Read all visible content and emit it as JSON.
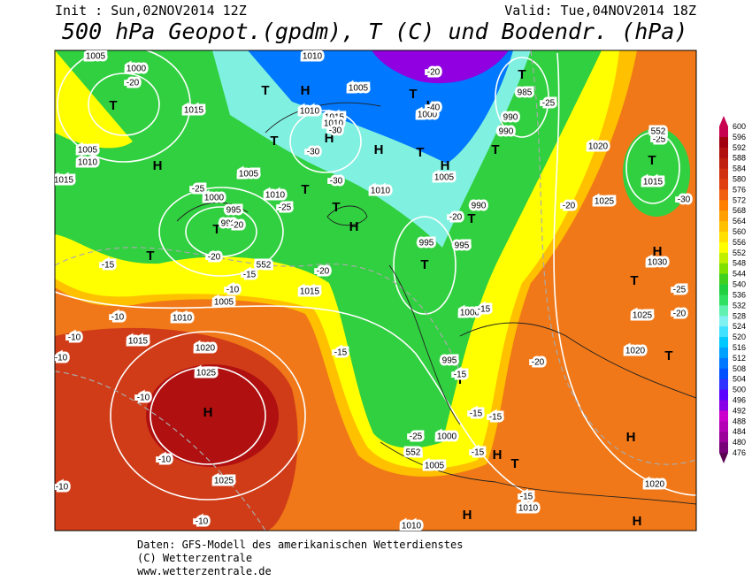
{
  "header": {
    "init": "Init : Sun,02NOV2014 12Z",
    "valid": "Valid: Tue,04NOV2014 18Z",
    "title": "500 hPa Geopot.(gpdm), T (C) und Bodendr. (hPa)"
  },
  "footer": {
    "line1": "Daten: GFS-Modell des amerikanischen Wetterdienstes",
    "line2": "(C) Wetterzentrale",
    "line3": "www.wetterzentrale.de"
  },
  "colorbar": {
    "labels": [
      600,
      596,
      592,
      588,
      584,
      580,
      576,
      572,
      568,
      564,
      560,
      556,
      552,
      548,
      544,
      540,
      536,
      532,
      528,
      524,
      520,
      516,
      512,
      508,
      504,
      500,
      496,
      492,
      488,
      484,
      480,
      476
    ],
    "colors": [
      "#c80050",
      "#a00010",
      "#b01010",
      "#c02010",
      "#d03010",
      "#e04010",
      "#f06010",
      "#ff8000",
      "#ffa000",
      "#ffc000",
      "#ffe000",
      "#ffff00",
      "#c0f000",
      "#80e000",
      "#40d020",
      "#20d040",
      "#30e060",
      "#60f0b0",
      "#80f0f0",
      "#40e0ff",
      "#00c8ff",
      "#00a0ff",
      "#0078ff",
      "#0050ff",
      "#3030ff",
      "#5a00ff",
      "#8a00e6",
      "#cc00cc",
      "#b400b4",
      "#9b009b",
      "#780078",
      "#5a0050"
    ]
  },
  "map_labels": {
    "pressure_centers": [
      "T",
      "H",
      "T",
      "H",
      "H",
      "T",
      "T",
      "H",
      "T",
      "H",
      "T",
      "H",
      "T",
      "T",
      "T",
      "H",
      "T",
      "T",
      "T",
      "T",
      "H",
      "H",
      "T",
      "H",
      "H",
      "H",
      "T",
      "T",
      "H",
      "T",
      "T"
    ],
    "isobar_labels": [
      1005,
      1000,
      1015,
      1010,
      1005,
      1015,
      1010,
      1010,
      1005,
      1015,
      1010,
      1005,
      1000,
      995,
      990,
      1010,
      1010,
      1000,
      990,
      990,
      985,
      1005,
      990,
      995,
      995,
      1015,
      1005,
      1010,
      1015,
      1020,
      1025,
      1025,
      1000,
      995,
      1000,
      1005,
      1010,
      1010,
      1020,
      1025,
      1015,
      1030,
      1025,
      1020,
      1020
    ],
    "temperature_labels": [
      -20,
      -20,
      -40,
      -25,
      -30,
      -30,
      -25,
      -25,
      -20,
      -30,
      -20,
      -15,
      -10,
      -20,
      -15,
      -10,
      -10,
      -10,
      -10,
      -15,
      -15,
      -15,
      -20,
      -15,
      -15,
      -20,
      -25,
      -30,
      -25,
      -20,
      -25,
      -15,
      -15,
      -10,
      -10,
      -10,
      -20
    ],
    "height_labels": [
      552,
      552,
      552
    ]
  }
}
